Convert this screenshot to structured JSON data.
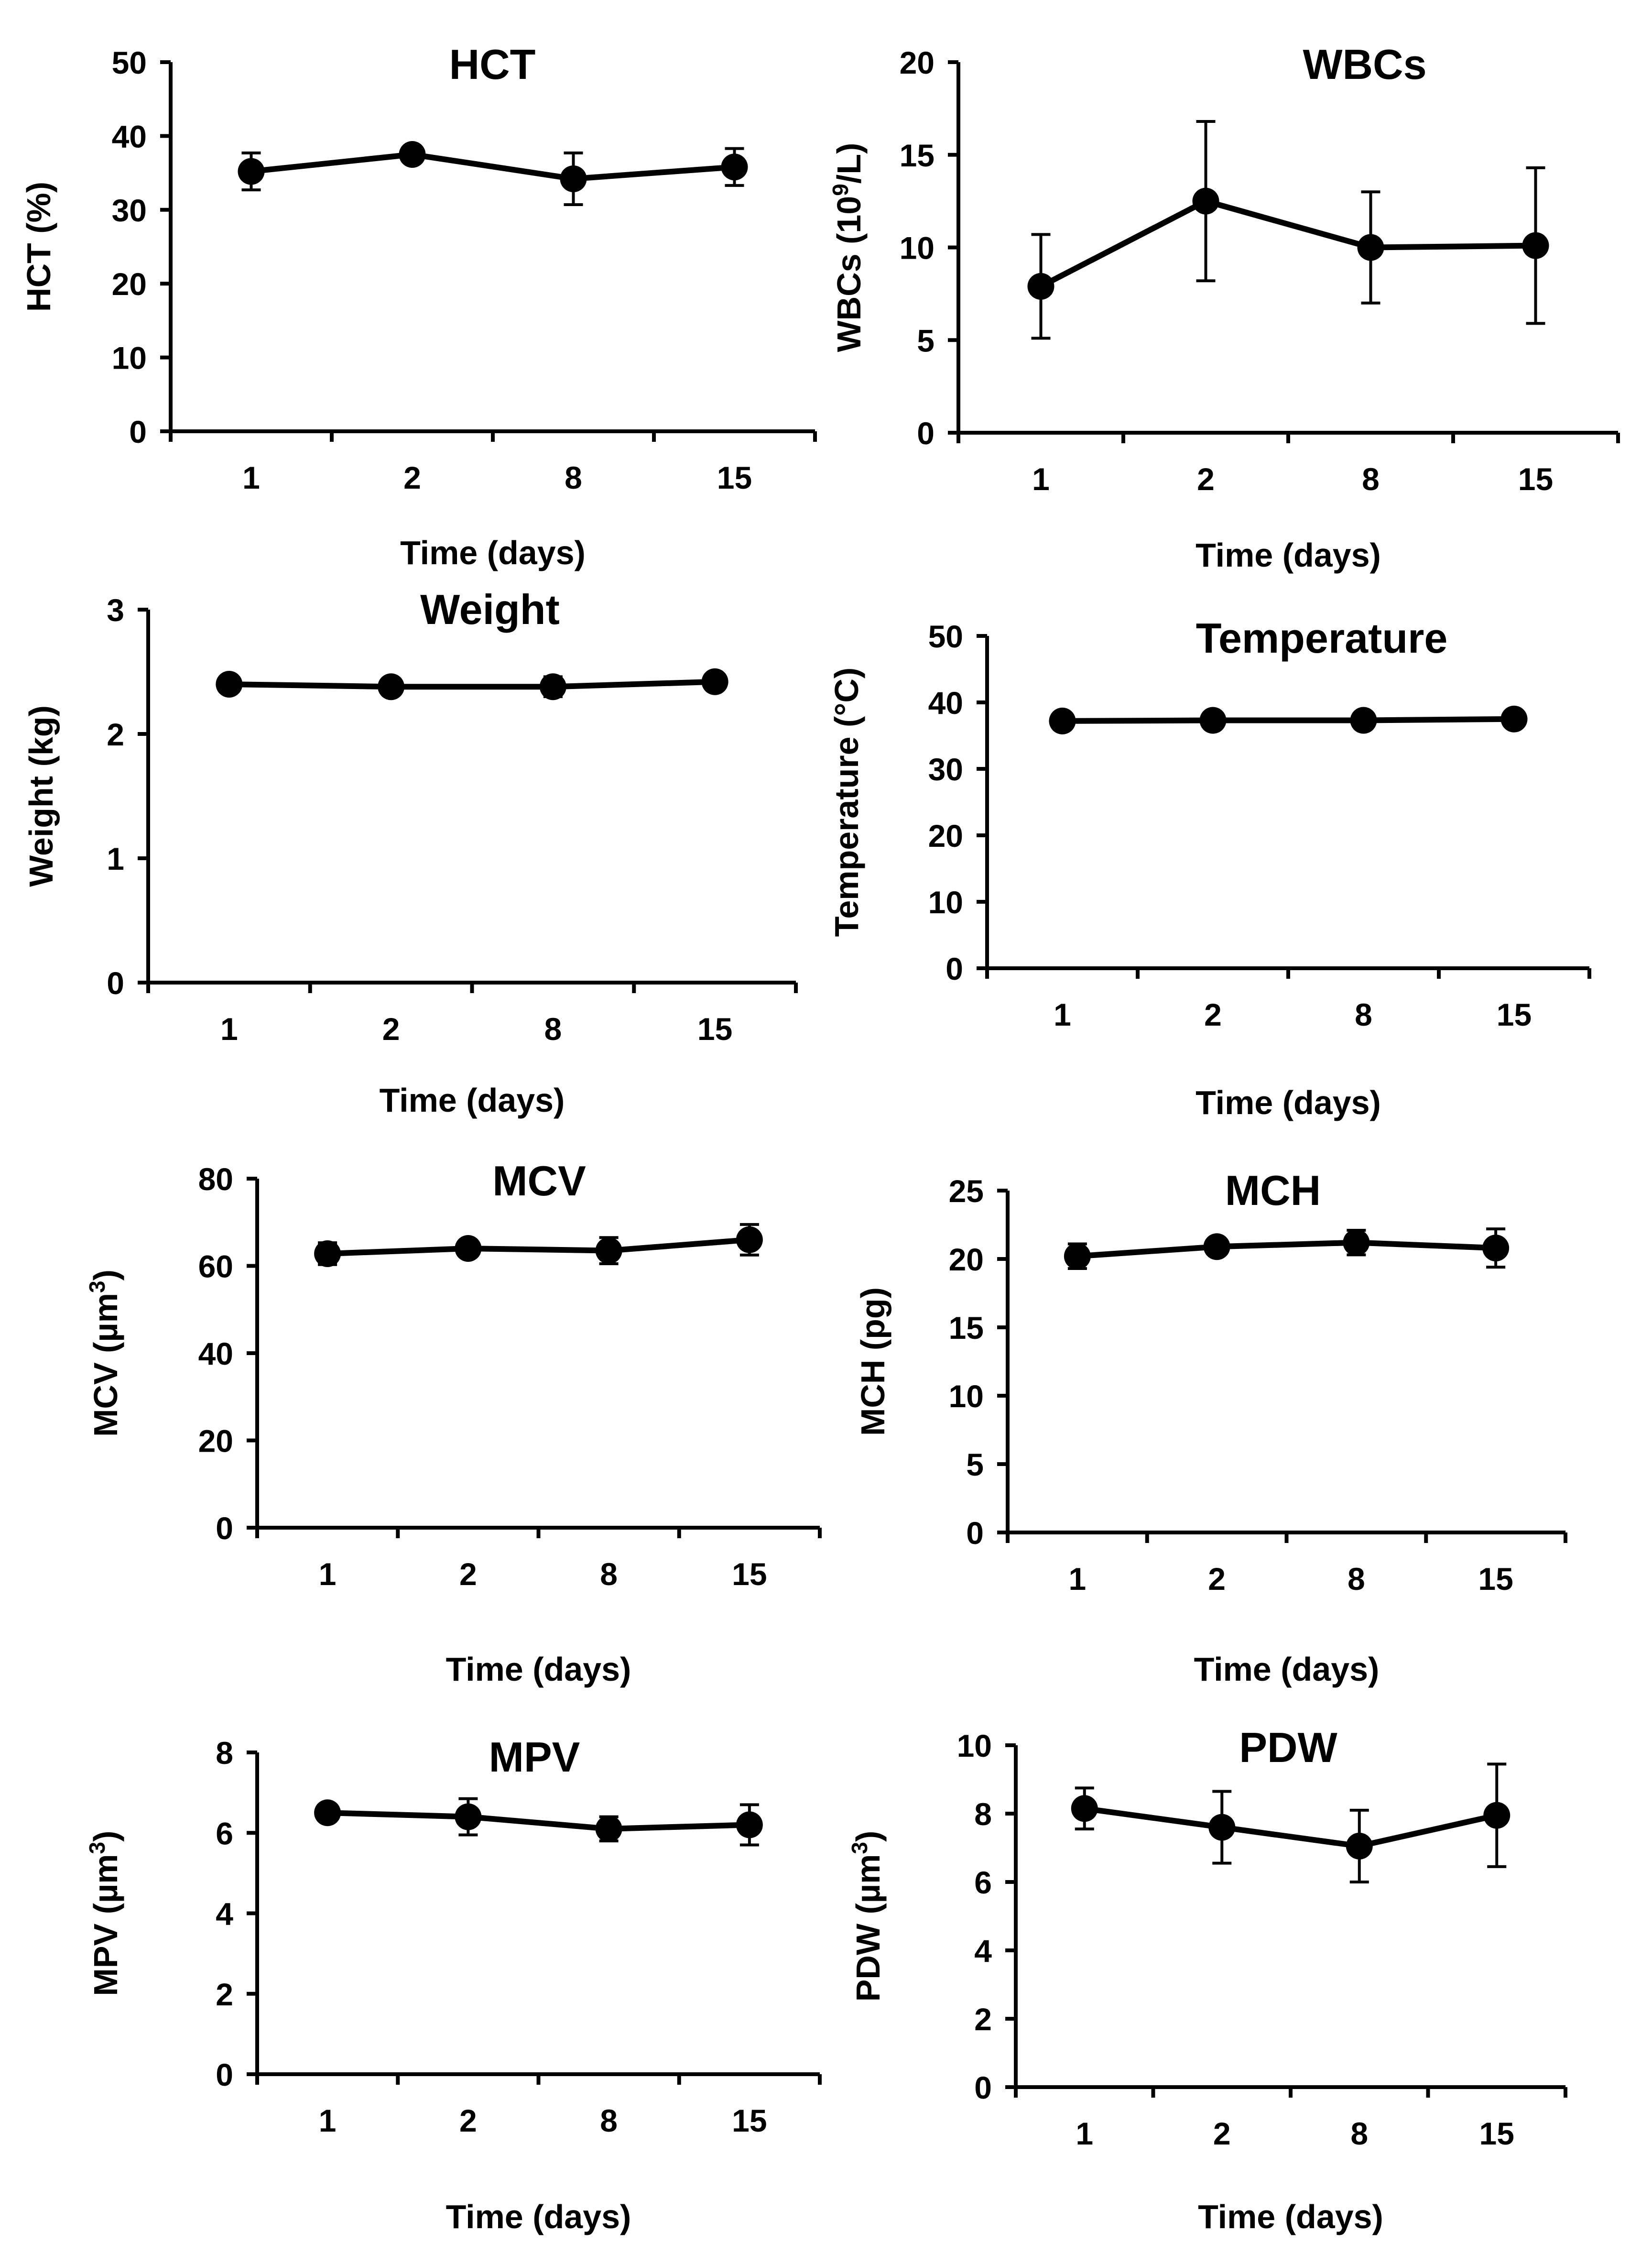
{
  "chart_data": [
    {
      "type": "line",
      "title": "HCT",
      "xlabel": "Time (days)",
      "ylabel": "HCT (%)",
      "categories": [
        "1",
        "2",
        "8",
        "15"
      ],
      "values": [
        35.2,
        37.5,
        34.2,
        35.8
      ],
      "error": [
        2.5,
        1.0,
        3.5,
        2.5
      ],
      "ylim": [
        0,
        50
      ],
      "yticks": [
        "0",
        "10",
        "20",
        "30",
        "40",
        "50"
      ],
      "grid": false,
      "legend": "none"
    },
    {
      "type": "line",
      "title": "WBCs",
      "xlabel": "Time (days)",
      "ylabel": "WBCs (10",
      "ylabel_sup": "9",
      "ylabel_suffix": "/L)",
      "categories": [
        "1",
        "2",
        "8",
        "15"
      ],
      "values": [
        7.9,
        12.5,
        10.0,
        10.1
      ],
      "error": [
        2.8,
        4.3,
        3.0,
        4.2
      ],
      "ylim": [
        0,
        20
      ],
      "yticks": [
        "0",
        "5",
        "10",
        "15",
        "20"
      ],
      "grid": false,
      "legend": "none"
    },
    {
      "type": "line",
      "title": "Weight",
      "xlabel": "Time (days)",
      "ylabel": "Weight (kg)",
      "categories": [
        "1",
        "2",
        "8",
        "15"
      ],
      "values": [
        2.4,
        2.38,
        2.38,
        2.42
      ],
      "error": [
        0.03,
        0.05,
        0.08,
        0.03
      ],
      "ylim": [
        0,
        3
      ],
      "yticks": [
        "0",
        "1",
        "2",
        "3"
      ],
      "grid": false,
      "legend": "none"
    },
    {
      "type": "line",
      "title": "Temperature",
      "xlabel": "Time (days)",
      "ylabel": "Temperature (°C)",
      "categories": [
        "1",
        "2",
        "8",
        "15"
      ],
      "values": [
        37.2,
        37.3,
        37.3,
        37.5
      ],
      "error": [
        0.3,
        0.3,
        0.3,
        0.3
      ],
      "ylim": [
        0,
        50
      ],
      "yticks": [
        "0",
        "10",
        "20",
        "30",
        "40",
        "50"
      ],
      "grid": false,
      "legend": "none"
    },
    {
      "type": "line",
      "title": "MCV",
      "xlabel": "Time (days)",
      "ylabel": "MCV (µm",
      "ylabel_sup": "3",
      "ylabel_suffix": ")",
      "categories": [
        "1",
        "2",
        "8",
        "15"
      ],
      "values": [
        62.8,
        64.0,
        63.5,
        66.0
      ],
      "error": [
        2.5,
        1.5,
        3.0,
        3.5
      ],
      "ylim": [
        0,
        80
      ],
      "yticks": [
        "0",
        "20",
        "40",
        "60",
        "80"
      ],
      "grid": false,
      "legend": "none"
    },
    {
      "type": "line",
      "title": "MCH",
      "xlabel": "Time (days)",
      "ylabel": "MCH (pg)",
      "categories": [
        "1",
        "2",
        "8",
        "15"
      ],
      "values": [
        20.2,
        20.9,
        21.2,
        20.8
      ],
      "error": [
        0.9,
        0.5,
        0.9,
        1.4
      ],
      "ylim": [
        0,
        25
      ],
      "yticks": [
        "0",
        "5",
        "10",
        "15",
        "20",
        "25"
      ],
      "grid": false,
      "legend": "none"
    },
    {
      "type": "line",
      "title": "MPV",
      "xlabel": "Time (days)",
      "ylabel": "MPV (µm",
      "ylabel_sup": "3",
      "ylabel_suffix": ")",
      "categories": [
        "1",
        "2",
        "8",
        "15"
      ],
      "values": [
        6.5,
        6.4,
        6.1,
        6.2
      ],
      "error": [
        0.15,
        0.45,
        0.3,
        0.5
      ],
      "ylim": [
        0,
        8
      ],
      "yticks": [
        "0",
        "2",
        "4",
        "6",
        "8"
      ],
      "grid": false,
      "legend": "none"
    },
    {
      "type": "line",
      "title": "PDW",
      "xlabel": "Time (days)",
      "ylabel": "PDW (µm",
      "ylabel_sup": "3",
      "ylabel_suffix": ")",
      "categories": [
        "1",
        "2",
        "8",
        "15"
      ],
      "values": [
        8.15,
        7.6,
        7.05,
        7.95
      ],
      "error": [
        0.6,
        1.05,
        1.05,
        1.5
      ],
      "ylim": [
        0,
        10
      ],
      "yticks": [
        "0",
        "2",
        "4",
        "6",
        "8",
        "10"
      ],
      "grid": false,
      "legend": "none"
    }
  ]
}
